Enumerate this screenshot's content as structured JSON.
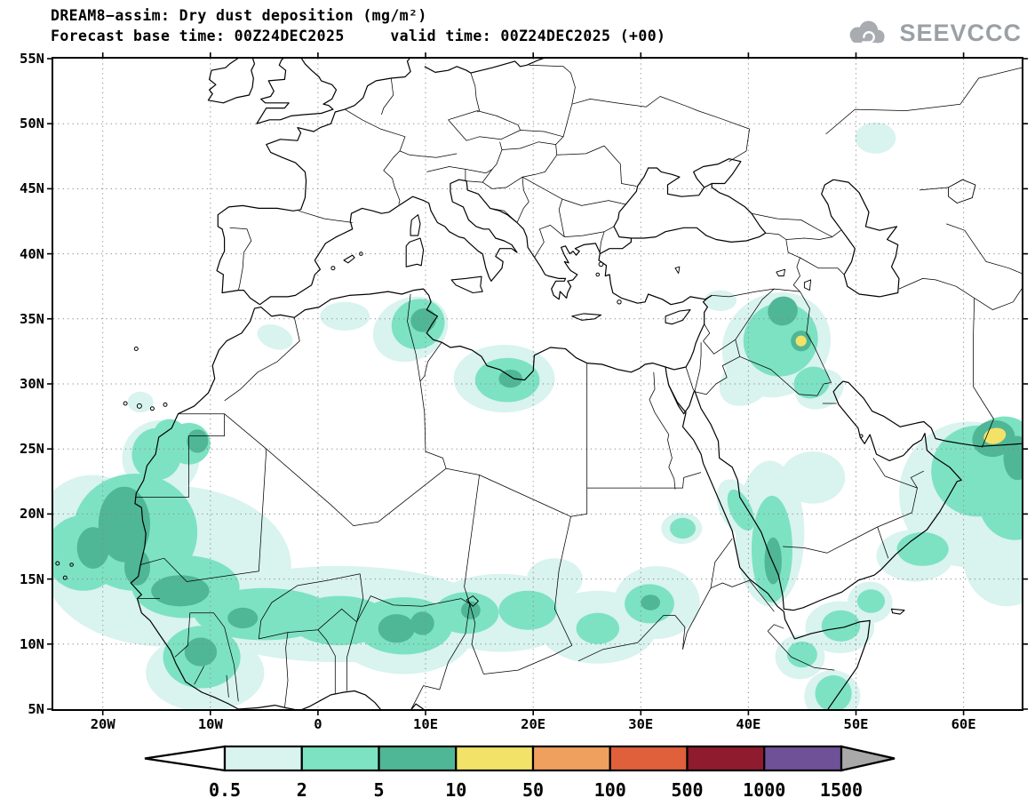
{
  "header": {
    "title": "DREAM8−assim: Dry dust deposition (mg/m²)",
    "subtitle": "Forecast base time: 00Z24DEC2025     valid time: 00Z24DEC2025 (+00)",
    "logo_text": "SEEVCCC"
  },
  "map": {
    "lat_ticks": [
      "55N",
      "50N",
      "45N",
      "40N",
      "35N",
      "30N",
      "25N",
      "20N",
      "15N",
      "10N",
      "5N"
    ],
    "lon_ticks": [
      "20W",
      "10W",
      "0",
      "10E",
      "20E",
      "30E",
      "40E",
      "50E",
      "60E"
    ]
  },
  "colorbar": {
    "labels": [
      "0.5",
      "2",
      "5",
      "10",
      "50",
      "100",
      "500",
      "1000",
      "1500"
    ],
    "segment_colors": [
      "#d9f3ef",
      "#7de2c2",
      "#4fb795",
      "#f2e368",
      "#f0a05e",
      "#e0603c",
      "#8e1b2e",
      "#6f5198"
    ],
    "underflow_color": "#ffffff",
    "overflow_color": "#a9a9a9"
  },
  "chart_data": {
    "type": "heatmap",
    "title": "DREAM8−assim: Dry dust deposition (mg/m²)",
    "model": "DREAM8-assim",
    "variable": "Dry dust deposition",
    "units": "mg/m²",
    "forecast_base_time": "00Z24DEC2025",
    "valid_time": "00Z24DEC2025 (+00)",
    "forecast_hour": "+00",
    "x_axis": {
      "label": "longitude",
      "tick_labels": [
        "20W",
        "10W",
        "0",
        "10E",
        "20E",
        "30E",
        "40E",
        "50E",
        "60E"
      ],
      "range_deg": [
        -24.6,
        65.4
      ]
    },
    "y_axis": {
      "label": "latitude",
      "tick_labels": [
        "55N",
        "50N",
        "45N",
        "40N",
        "35N",
        "30N",
        "25N",
        "20N",
        "15N",
        "10N",
        "5N"
      ],
      "range_deg": [
        5,
        55
      ]
    },
    "grid": "dotted, every 10 deg lon / 5 deg lat",
    "legend": {
      "position": "bottom",
      "levels_mg_m2": [
        0.5,
        2,
        5,
        10,
        50,
        100,
        500,
        1000,
        1500
      ],
      "colors": [
        "#d9f3ef",
        "#7de2c2",
        "#4fb795",
        "#f2e368",
        "#f0a05e",
        "#e0603c",
        "#8e1b2e",
        "#6f5198"
      ],
      "underflow": "white (< 0.5)",
      "overflow": "gray (> 1500)"
    },
    "active_regions": [
      {
        "region": "Atlantic ocean off Senegal/Mauritania",
        "approx_center_lonlat": [
          -18,
          18
        ],
        "level_range_mg_m2": "2–10"
      },
      {
        "region": "Sahel band from Senegal to Sudan (8N–15N)",
        "approx_center_lonlat": [
          5,
          12
        ],
        "level_range_mg_m2": "0.5–10"
      },
      {
        "region": "Western Sahara / Mauritania coast",
        "approx_center_lonlat": [
          -13,
          25
        ],
        "level_range_mg_m2": "0.5–10"
      },
      {
        "region": "Northern Algeria / Tunisia",
        "approx_center_lonlat": [
          9,
          35
        ],
        "level_range_mg_m2": "0.5–10"
      },
      {
        "region": "Central Libya",
        "approx_center_lonlat": [
          17.5,
          30.5
        ],
        "level_range_mg_m2": "0.5–10"
      },
      {
        "region": "Mesopotamia (Syria/Iraq), local max east of Baghdad",
        "approx_center_lonlat": [
          43,
          34
        ],
        "level_range_mg_m2": "0.5–50"
      },
      {
        "region": "Southern Red Sea coasts",
        "approx_center_lonlat": [
          42,
          17
        ],
        "level_range_mg_m2": "0.5–10"
      },
      {
        "region": "Horn of Africa",
        "approx_center_lonlat": [
          49,
          11
        ],
        "level_range_mg_m2": "0.5–5"
      },
      {
        "region": "Gulf of Oman / Arabian Sea, local max near 63E 26N",
        "approx_center_lonlat": [
          61,
          23
        ],
        "level_range_mg_m2": "0.5–50"
      },
      {
        "region": "Steppe north of Caspian Sea",
        "approx_center_lonlat": [
          52,
          49
        ],
        "level_range_mg_m2": "0.5–2"
      }
    ]
  }
}
